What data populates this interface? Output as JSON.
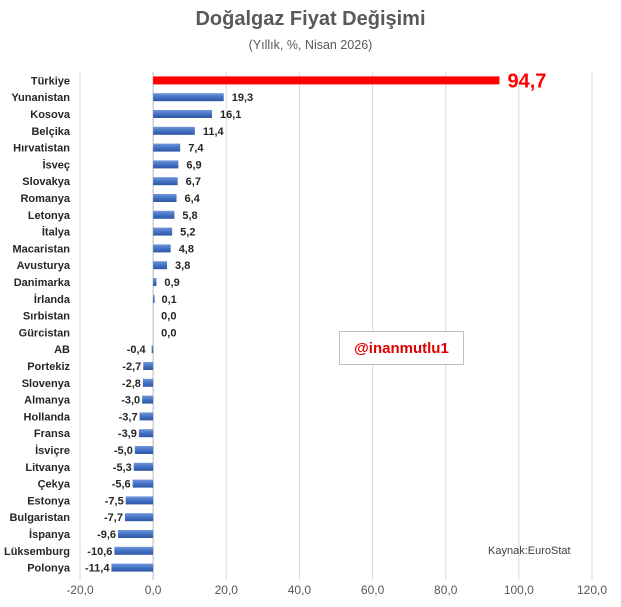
{
  "chart_data": {
    "type": "bar",
    "orientation": "horizontal",
    "title": "Doğalgaz Fiyat Değişimi",
    "subtitle": "(Yıllık, %, Nisan 2026)",
    "categories": [
      "Türkiye",
      "Yunanistan",
      "Kosova",
      "Belçika",
      "Hırvatistan",
      "İsveç",
      "Slovakya",
      "Romanya",
      "Letonya",
      "İtalya",
      "Macaristan",
      "Avusturya",
      "Danimarka",
      "İrlanda",
      "Sırbistan",
      "Gürcistan",
      "AB",
      "Portekiz",
      "Slovenya",
      "Almanya",
      "Hollanda",
      "Fransa",
      "İsviçre",
      "Litvanya",
      "Çekya",
      "Estonya",
      "Bulgaristan",
      "İspanya",
      "Lüksemburg",
      "Polonya"
    ],
    "values": [
      94.7,
      19.3,
      16.1,
      11.4,
      7.4,
      6.9,
      6.7,
      6.4,
      5.8,
      5.2,
      4.8,
      3.8,
      0.9,
      0.1,
      0.0,
      0.0,
      -0.4,
      -2.7,
      -2.8,
      -3.0,
      -3.7,
      -3.9,
      -5.0,
      -5.3,
      -5.6,
      -7.5,
      -7.7,
      -9.6,
      -10.6,
      -11.4
    ],
    "value_labels": [
      "94,7",
      "19,3",
      "16,1",
      "11,4",
      "7,4",
      "6,9",
      "6,7",
      "6,4",
      "5,8",
      "5,2",
      "4,8",
      "3,8",
      "0,9",
      "0,1",
      "0,0",
      "0,0",
      "-0,4",
      "-2,7",
      "-2,8",
      "-3,0",
      "-3,7",
      "-3,9",
      "-5,0",
      "-5,3",
      "-5,6",
      "-7,5",
      "-7,7",
      "-9,6",
      "-10,6",
      "-11,4"
    ],
    "xlim": [
      -20,
      120
    ],
    "x_ticks": [
      -20,
      0,
      20,
      40,
      60,
      80,
      100,
      120
    ],
    "x_tick_labels": [
      "-20,0",
      "0,0",
      "20,0",
      "40,0",
      "60,0",
      "80,0",
      "100,0",
      "120,0"
    ],
    "grid": "vertical",
    "highlight_category": "Türkiye",
    "colors": {
      "bar": "#4472c4",
      "highlight_bar": "#ff0000",
      "highlight_label": "#ff0000",
      "grid": "#d9d9d9",
      "text": "#262626"
    }
  },
  "watermark": "@inanmutlu1",
  "source": "Kaynak:EuroStat"
}
